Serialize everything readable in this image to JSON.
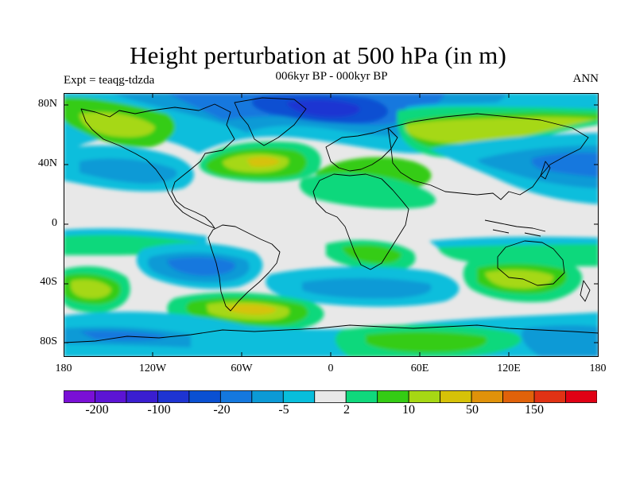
{
  "title": "Height perturbation at 500 hPa (in m)",
  "subtitle": "006kyr BP - 000kyr BP",
  "experiment": "Expt = teaqg-tdzda",
  "season": "ANN",
  "map": {
    "projection": "cylindrical equidistant",
    "lon_range": [
      -180,
      180
    ],
    "lat_range": [
      -90,
      90
    ],
    "lat_ticks": [
      "80N",
      "40N",
      "0",
      "40S",
      "80S"
    ],
    "lon_ticks": [
      "180",
      "120W",
      "60W",
      "0",
      "60E",
      "120E",
      "180"
    ],
    "background_color": "#e8e8e8",
    "coastline_color": "#000000"
  },
  "colorbar": {
    "colors": [
      "#7a10d6",
      "#5c14d4",
      "#3a1ed0",
      "#1e34d2",
      "#0a50d2",
      "#1478de",
      "#0c9ad6",
      "#08bedc",
      "#e8e8e8",
      "#10d87c",
      "#34cc14",
      "#a6d814",
      "#d6c208",
      "#e0920a",
      "#e0620a",
      "#e03214",
      "#e00014"
    ],
    "labels": [
      "-200",
      "-100",
      "-20",
      "-5",
      "2",
      "10",
      "50",
      "150"
    ]
  }
}
